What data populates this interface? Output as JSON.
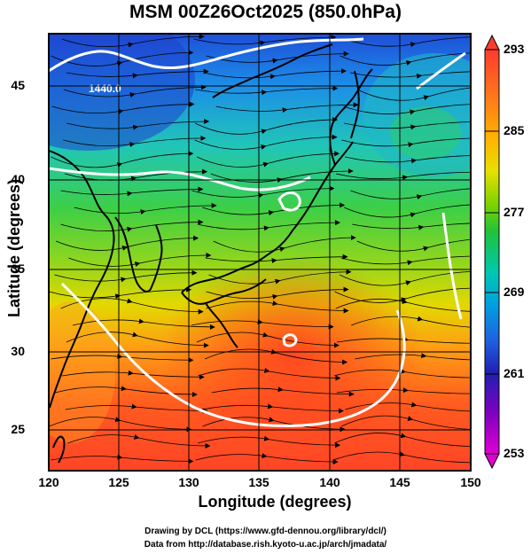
{
  "title": "MSM 00Z26Oct2025 (850.0hPa)",
  "xlabel": "Longitude (degrees)",
  "ylabel": "Latitude  (degrees)",
  "x_ticks": [
    "120",
    "125",
    "130",
    "135",
    "140",
    "145",
    "150"
  ],
  "y_ticks": [
    "25",
    "30",
    "35",
    "40",
    "45"
  ],
  "colorbar": {
    "ticks": [
      "293",
      "285",
      "277",
      "269",
      "261",
      "253"
    ],
    "colors": [
      "#ff3b2e",
      "#ff7a1a",
      "#ffb300",
      "#e8e000",
      "#7fd400",
      "#1fc23a",
      "#00c8b0",
      "#00a0e0",
      "#2060e0",
      "#2020b0",
      "#8000c0",
      "#e000d0"
    ]
  },
  "contour_labels": [
    "1440.0"
  ],
  "credits": {
    "line1": "Drawing by DCL (https://www.gfd-dennou.org/library/dcl/)",
    "line2": "Data from http://database.rish.kyoto-u.ac.jp/arch/jmadata/"
  }
}
